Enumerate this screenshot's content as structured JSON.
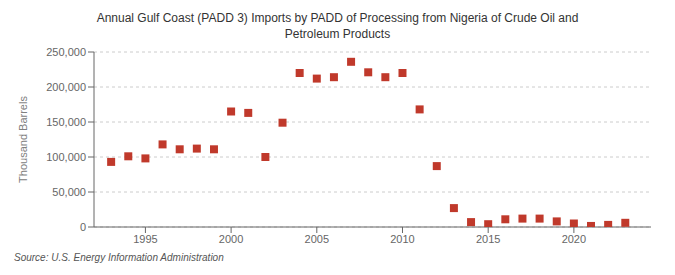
{
  "chart_data": {
    "type": "scatter",
    "title": "Annual Gulf Coast (PADD 3) Imports by PADD of Processing from Nigeria of Crude Oil and\nPetroleum Products",
    "ylabel": "Thousand Barrels",
    "annotations": [
      "Source: U.S. Energy Information Administration"
    ],
    "x": [
      1993,
      1994,
      1995,
      1996,
      1997,
      1998,
      1999,
      2000,
      2001,
      2002,
      2003,
      2004,
      2005,
      2006,
      2007,
      2008,
      2009,
      2010,
      2011,
      2012,
      2013,
      2014,
      2015,
      2016,
      2017,
      2018,
      2019,
      2020,
      2021,
      2022,
      2023
    ],
    "values": [
      93000,
      101000,
      98000,
      118000,
      111000,
      112000,
      111000,
      165000,
      163000,
      100000,
      149000,
      220000,
      212000,
      214000,
      236000,
      221000,
      214000,
      220000,
      168000,
      87000,
      27000,
      7000,
      4000,
      11000,
      12000,
      12000,
      8000,
      5000,
      1500,
      3000,
      6000
    ],
    "color": "#c0392b",
    "marker": "square",
    "xlim": [
      1992,
      2024.5
    ],
    "xticks": [
      1995,
      2000,
      2005,
      2010,
      2015,
      2020
    ],
    "ylim": [
      0,
      250000
    ],
    "yticks": [
      0,
      {
        "value": 50000,
        "label": "50,000"
      },
      {
        "value": 100000,
        "label": "100,000"
      },
      {
        "value": 150000,
        "label": "150,000"
      },
      {
        "value": 200000,
        "label": "200,000"
      },
      {
        "value": 250000,
        "label": "250,000"
      }
    ],
    "grid": true
  }
}
